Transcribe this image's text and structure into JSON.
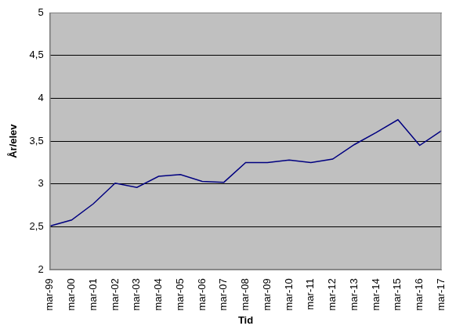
{
  "chart_data": {
    "type": "line",
    "x_label": "Tid",
    "y_label": "År/elev",
    "categories": [
      "mar-99",
      "mar-00",
      "mar-01",
      "mar-02",
      "mar-03",
      "mar-04",
      "mar-05",
      "mar-06",
      "mar-07",
      "mar-08",
      "mar-09",
      "mar-10",
      "mar-11",
      "mar-12",
      "mar-13",
      "mar-14",
      "mar-15",
      "mar-16",
      "mar-17"
    ],
    "values": [
      2.51,
      2.58,
      2.77,
      3.01,
      2.96,
      3.09,
      3.11,
      3.03,
      3.02,
      3.25,
      3.25,
      3.28,
      3.25,
      3.29,
      3.46,
      3.6,
      3.75,
      3.45,
      3.62
    ],
    "color": "#000080",
    "ylim": [
      2,
      5
    ],
    "yticks": [
      2,
      {
        "value": 2.5,
        "label": "2,5"
      },
      3,
      {
        "value": 3.5,
        "label": "3,5"
      },
      4,
      {
        "value": 4.5,
        "label": "4,5"
      },
      5
    ],
    "grid": true
  }
}
